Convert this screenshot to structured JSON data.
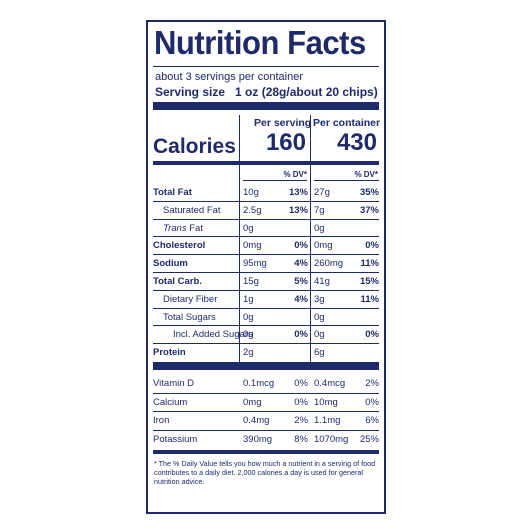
{
  "title": "Nutrition Facts",
  "servings_per_container": "about 3 servings per container",
  "serving_size_label": "Serving size",
  "serving_size_value": "1 oz (28g/about 20 chips)",
  "calories_label": "Calories",
  "per_serving_label": "Per serving",
  "per_container_label": "Per container",
  "calories_per_serving": "160",
  "calories_per_container": "430",
  "dv_header": "% DV*",
  "nutrients": [
    {
      "name": "Total Fat",
      "serv": "10g",
      "serv_dv": "13%",
      "cont": "27g",
      "cont_dv": "35%"
    },
    {
      "name": "Saturated Fat",
      "serv": "2.5g",
      "serv_dv": "13%",
      "cont": "7g",
      "cont_dv": "37%"
    },
    {
      "name_italic": "Trans",
      "name_rest": " Fat",
      "serv": "0g",
      "serv_dv": "",
      "cont": "0g",
      "cont_dv": ""
    },
    {
      "name": "Cholesterol",
      "serv": "0mg",
      "serv_dv": "0%",
      "cont": "0mg",
      "cont_dv": "0%"
    },
    {
      "name": "Sodium",
      "serv": "95mg",
      "serv_dv": "4%",
      "cont": "260mg",
      "cont_dv": "11%"
    },
    {
      "name": "Total Carb.",
      "serv": "15g",
      "serv_dv": "5%",
      "cont": "41g",
      "cont_dv": "15%"
    },
    {
      "name": "Dietary Fiber",
      "serv": "1g",
      "serv_dv": "4%",
      "cont": "3g",
      "cont_dv": "11%"
    },
    {
      "name": "Total Sugars",
      "serv": "0g",
      "serv_dv": "",
      "cont": "0g",
      "cont_dv": ""
    },
    {
      "name": "Incl. Added Sugars",
      "serv": "0g",
      "serv_dv": "0%",
      "cont": "0g",
      "cont_dv": "0%"
    },
    {
      "name": "Protein",
      "serv": "2g",
      "serv_dv": "",
      "cont": "6g",
      "cont_dv": ""
    }
  ],
  "vitamins": [
    {
      "name": "Vitamin D",
      "serv": "0.1mcg",
      "serv_dv": "0%",
      "cont": "0.4mcg",
      "cont_dv": "2%"
    },
    {
      "name": "Calcium",
      "serv": "0mg",
      "serv_dv": "0%",
      "cont": "10mg",
      "cont_dv": "0%"
    },
    {
      "name": "Iron",
      "serv": "0.4mg",
      "serv_dv": "2%",
      "cont": "1.1mg",
      "cont_dv": "6%"
    },
    {
      "name": "Potassium",
      "serv": "390mg",
      "serv_dv": "8%",
      "cont": "1070mg",
      "cont_dv": "25%"
    }
  ],
  "footnote": "* The % Daily Value tells you how much a nutrient in a serving of food contributes to a daily diet. 2,000 calories a day is used for general nutrition advice."
}
